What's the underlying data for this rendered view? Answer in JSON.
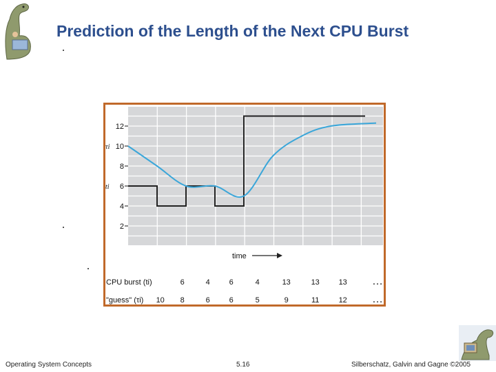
{
  "slide": {
    "title": "Prediction of the Length of the Next CPU Burst",
    "footer_left": "Operating System Concepts",
    "footer_center": "5.16",
    "footer_right": "Silberschatz, Galvin and Gagne ©2005",
    "title_color": "#2d4f8e",
    "frame_color": "#c0692a",
    "curve_color": "#3aa6d9",
    "step_color": "#222222",
    "plot_bg": "#d6d7d9",
    "logo_top_left": "dinosaur-logo",
    "logo_bottom_right": "dinosaur-computer-logo"
  },
  "chart_data": {
    "type": "line",
    "y_ticks": [
      "12",
      "10",
      "8",
      "6",
      "4",
      "2"
    ],
    "ylim": [
      0,
      13.5
    ],
    "ytick_values": [
      12,
      10,
      8,
      6,
      4,
      2
    ],
    "y_markers": [
      {
        "text": "τi",
        "value": 10
      },
      {
        "text": "ti",
        "value": 6
      }
    ],
    "xlabel": "time",
    "grid": true,
    "series": [
      {
        "name": "CPU burst (ti)",
        "values": [
          6,
          4,
          6,
          4,
          13,
          13,
          13
        ]
      },
      {
        "name": "\"guess\" (τi)",
        "values": [
          10,
          8,
          6,
          6,
          5,
          9,
          11,
          12
        ]
      }
    ],
    "table": {
      "rows": [
        {
          "label": "CPU burst (ti)",
          "values": [
            "6",
            "4",
            "6",
            "4",
            "13",
            "13",
            "13"
          ],
          "ellipsis": "…"
        },
        {
          "label": "\"guess\" (τi)",
          "values": [
            "10",
            "8",
            "6",
            "6",
            "5",
            "9",
            "11",
            "12"
          ],
          "ellipsis": "…"
        }
      ]
    }
  }
}
